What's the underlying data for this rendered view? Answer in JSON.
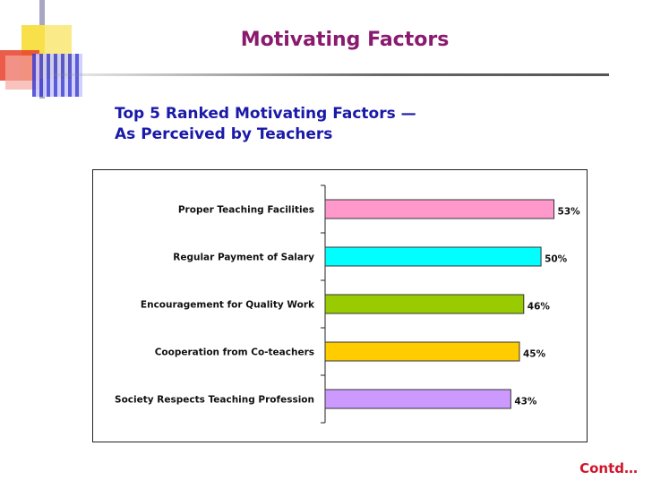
{
  "page": {
    "title": "Motivating Factors",
    "subtitle_line1": "Top 5 Ranked Motivating Factors —",
    "subtitle_line2": "As Perceived by Teachers",
    "footer": "Contd…"
  },
  "chart_data": {
    "type": "bar",
    "orientation": "horizontal",
    "categories": [
      "Proper Teaching Facilities",
      "Regular Payment of Salary",
      "Encouragement for Quality Work",
      "Cooperation from Co-teachers",
      "Society Respects Teaching Profession"
    ],
    "values": [
      53,
      50,
      46,
      45,
      43
    ],
    "value_labels": [
      "53%",
      "50%",
      "46%",
      "45%",
      "43%"
    ],
    "colors": [
      "#ff99cc",
      "#00ffff",
      "#99cc00",
      "#ffcc00",
      "#cc99ff"
    ],
    "title": "",
    "xlabel": "",
    "ylabel": "",
    "xlim": [
      0,
      56
    ],
    "grid": false,
    "legend": "none"
  },
  "colors": {
    "title": "#8a1a6e",
    "subtitle": "#1a1aa8",
    "footer": "#d0162a"
  }
}
